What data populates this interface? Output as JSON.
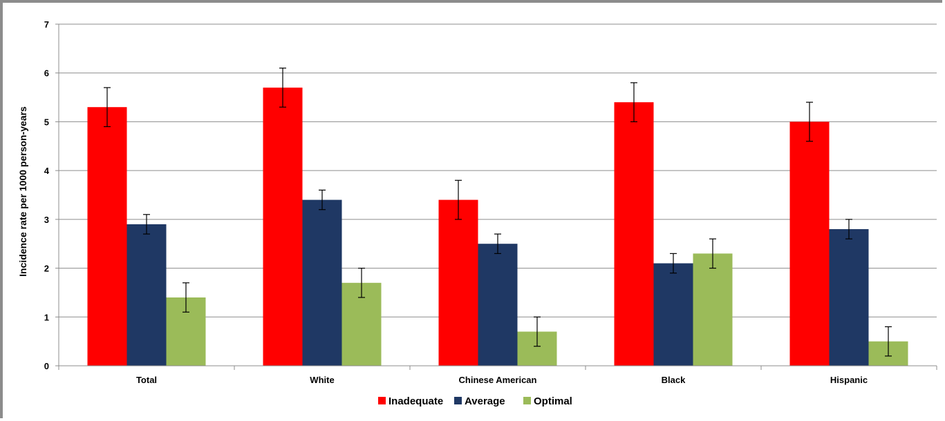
{
  "chart_data": {
    "type": "bar",
    "title": "",
    "xlabel": "",
    "ylabel": "Incidence rate per 1000 person-years",
    "ylim": [
      0,
      7
    ],
    "yticks": [
      0,
      1,
      2,
      3,
      4,
      5,
      6,
      7
    ],
    "grid": true,
    "legend_position": "bottom",
    "categories": [
      "Total",
      "White",
      "Chinese American",
      "Black",
      "Hispanic"
    ],
    "series": [
      {
        "name": "Inadequate",
        "color": "#ff0000",
        "values": [
          5.3,
          5.7,
          3.4,
          5.4,
          5.0
        ],
        "error_low": [
          4.9,
          5.3,
          3.0,
          5.0,
          4.6
        ],
        "error_high": [
          5.7,
          6.1,
          3.8,
          5.8,
          5.4
        ]
      },
      {
        "name": "Average",
        "color": "#1f3864",
        "values": [
          2.9,
          3.4,
          2.5,
          2.1,
          2.8
        ],
        "error_low": [
          2.7,
          3.2,
          2.3,
          1.9,
          2.6
        ],
        "error_high": [
          3.1,
          3.6,
          2.7,
          2.3,
          3.0
        ]
      },
      {
        "name": "Optimal",
        "color": "#9bbb59",
        "values": [
          1.4,
          1.7,
          0.7,
          2.3,
          0.5
        ],
        "error_low": [
          1.1,
          1.4,
          0.4,
          2.0,
          0.2
        ],
        "error_high": [
          1.7,
          2.0,
          1.0,
          2.6,
          0.8
        ]
      }
    ]
  }
}
